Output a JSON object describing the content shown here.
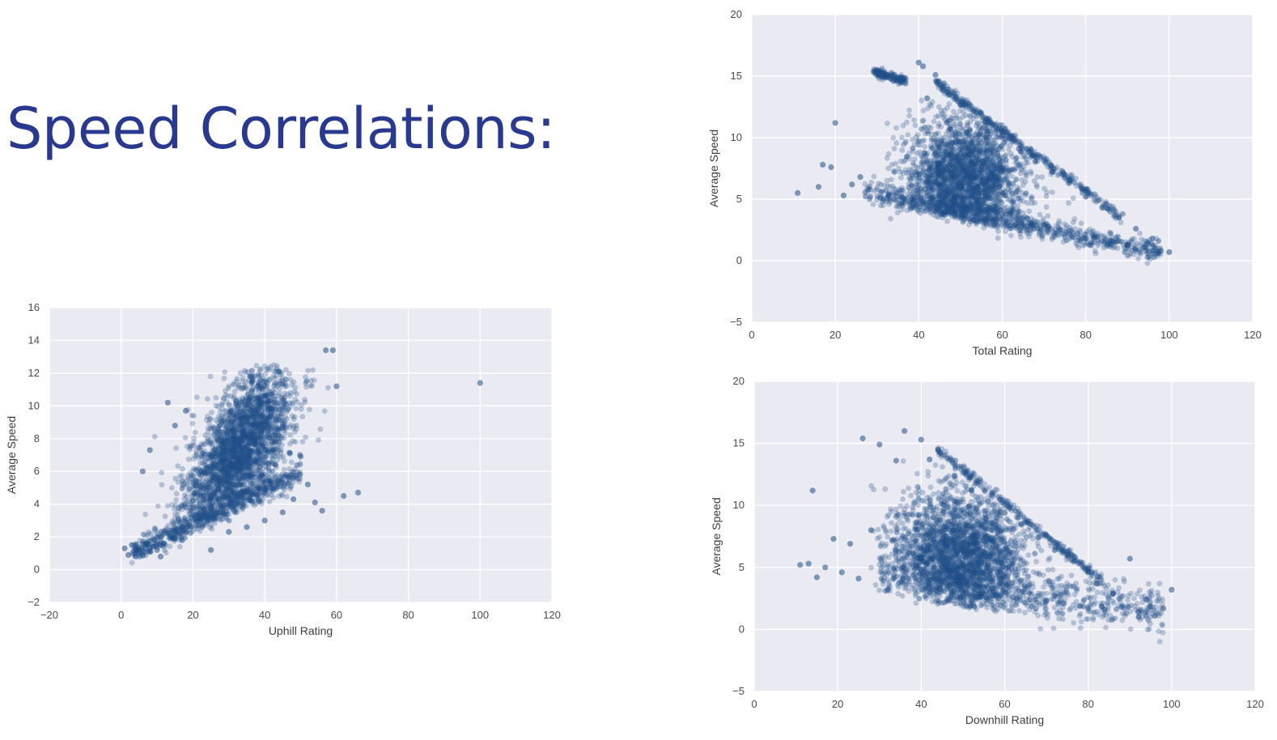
{
  "title": "Speed Correlations:",
  "colors": {
    "title": "#2a3990",
    "point": "#1f4e87",
    "background": "#eaeaf2",
    "grid": "#ffffff"
  },
  "chart_data": [
    {
      "type": "scatter",
      "xlabel": "Uphill Rating",
      "ylabel": "Average Speed",
      "xlim": [
        -20,
        120
      ],
      "ylim": [
        -2,
        16
      ],
      "xticks": [
        "−20",
        "0",
        "20",
        "40",
        "60",
        "80",
        "100",
        "120"
      ],
      "yticks": [
        "−2",
        "0",
        "2",
        "4",
        "6",
        "8",
        "10",
        "12",
        "14",
        "16"
      ],
      "grid": true,
      "points": [
        [
          1,
          1.3
        ],
        [
          2,
          0.9
        ],
        [
          3,
          1.5
        ],
        [
          4,
          0.8
        ],
        [
          5,
          1.2
        ],
        [
          6,
          0.9
        ],
        [
          7,
          1.6
        ],
        [
          8,
          1.1
        ],
        [
          9,
          1.4
        ],
        [
          10,
          1.2
        ],
        [
          11,
          2.0
        ],
        [
          12,
          1.6
        ],
        [
          14,
          2.4
        ],
        [
          15,
          1.9
        ],
        [
          16,
          3.1
        ],
        [
          17,
          2.6
        ],
        [
          18,
          3.8
        ],
        [
          19,
          2.9
        ],
        [
          20,
          4.2
        ],
        [
          21,
          3.4
        ],
        [
          22,
          5.1
        ],
        [
          23,
          3.7
        ],
        [
          24,
          6.2
        ],
        [
          25,
          4.4
        ],
        [
          26,
          7.3
        ],
        [
          27,
          4.9
        ],
        [
          28,
          8.1
        ],
        [
          29,
          5.6
        ],
        [
          30,
          9.2
        ],
        [
          31,
          6.1
        ],
        [
          32,
          10.3
        ],
        [
          33,
          6.8
        ],
        [
          34,
          11.1
        ],
        [
          35,
          7.4
        ],
        [
          36,
          11.8
        ],
        [
          37,
          7.9
        ],
        [
          38,
          11.2
        ],
        [
          39,
          8.4
        ],
        [
          40,
          10.6
        ],
        [
          41,
          7.2
        ],
        [
          42,
          9.8
        ],
        [
          43,
          6.4
        ],
        [
          44,
          12.1
        ],
        [
          45,
          8.9
        ],
        [
          46,
          5.8
        ],
        [
          47,
          7.1
        ],
        [
          48,
          4.3
        ],
        [
          50,
          6.9
        ],
        [
          52,
          5.2
        ],
        [
          54,
          4.1
        ],
        [
          56,
          3.6
        ],
        [
          57,
          13.4
        ],
        [
          59,
          13.4
        ],
        [
          60,
          11.2
        ],
        [
          62,
          4.5
        ],
        [
          66,
          4.7
        ],
        [
          100,
          11.4
        ],
        [
          6,
          6.0
        ],
        [
          8,
          7.3
        ],
        [
          13,
          10.2
        ],
        [
          15,
          8.8
        ],
        [
          18,
          9.7
        ],
        [
          11,
          0.8
        ],
        [
          25,
          1.2
        ],
        [
          30,
          2.3
        ],
        [
          35,
          2.6
        ],
        [
          40,
          3.0
        ],
        [
          45,
          3.5
        ]
      ],
      "points_note": "approximate sample of a dense point cloud"
    },
    {
      "type": "scatter",
      "xlabel": "Total Rating",
      "ylabel": "Average Speed",
      "xlim": [
        0,
        120
      ],
      "ylim": [
        -5,
        20
      ],
      "xticks": [
        "0",
        "20",
        "40",
        "60",
        "80",
        "100",
        "120"
      ],
      "yticks": [
        "−5",
        "0",
        "5",
        "10",
        "15",
        "20"
      ],
      "grid": true,
      "points": [
        [
          11,
          5.5
        ],
        [
          16,
          6.0
        ],
        [
          17,
          7.8
        ],
        [
          19,
          7.6
        ],
        [
          20,
          11.2
        ],
        [
          22,
          5.3
        ],
        [
          24,
          6.2
        ],
        [
          26,
          6.8
        ],
        [
          28,
          5.8
        ],
        [
          30,
          15.4
        ],
        [
          32,
          15.0
        ],
        [
          34,
          14.6
        ],
        [
          36,
          5.2
        ],
        [
          38,
          4.8
        ],
        [
          40,
          16.1
        ],
        [
          41,
          15.8
        ],
        [
          42,
          13.2
        ],
        [
          44,
          15.1
        ],
        [
          46,
          14.4
        ],
        [
          48,
          9.6
        ],
        [
          50,
          12.7
        ],
        [
          52,
          7.1
        ],
        [
          54,
          6.0
        ],
        [
          56,
          11.3
        ],
        [
          58,
          4.1
        ],
        [
          60,
          10.2
        ],
        [
          62,
          3.9
        ],
        [
          64,
          9.1
        ],
        [
          66,
          3.4
        ],
        [
          68,
          8.1
        ],
        [
          70,
          2.9
        ],
        [
          72,
          7.2
        ],
        [
          74,
          2.5
        ],
        [
          76,
          6.3
        ],
        [
          78,
          2.2
        ],
        [
          80,
          5.2
        ],
        [
          82,
          1.9
        ],
        [
          84,
          4.3
        ],
        [
          86,
          1.6
        ],
        [
          88,
          3.5
        ],
        [
          90,
          1.3
        ],
        [
          92,
          2.6
        ],
        [
          94,
          1.1
        ],
        [
          96,
          1.8
        ],
        [
          98,
          0.8
        ],
        [
          100,
          0.7
        ]
      ],
      "points_note": "approximate sample of a dense point cloud"
    },
    {
      "type": "scatter",
      "xlabel": "Downhill Rating",
      "ylabel": "Average Speed",
      "xlim": [
        0,
        120
      ],
      "ylim": [
        -5,
        20
      ],
      "xticks": [
        "0",
        "20",
        "40",
        "60",
        "80",
        "100",
        "120"
      ],
      "yticks": [
        "−5",
        "0",
        "5",
        "10",
        "15",
        "20"
      ],
      "grid": true,
      "points": [
        [
          11,
          5.2
        ],
        [
          13,
          5.3
        ],
        [
          14,
          11.2
        ],
        [
          15,
          4.2
        ],
        [
          17,
          5.0
        ],
        [
          19,
          7.3
        ],
        [
          21,
          4.6
        ],
        [
          23,
          6.9
        ],
        [
          25,
          4.1
        ],
        [
          26,
          15.4
        ],
        [
          28,
          8.0
        ],
        [
          30,
          14.9
        ],
        [
          32,
          3.2
        ],
        [
          34,
          13.6
        ],
        [
          36,
          16.0
        ],
        [
          38,
          4.4
        ],
        [
          40,
          15.3
        ],
        [
          42,
          13.7
        ],
        [
          44,
          14.5
        ],
        [
          46,
          7.5
        ],
        [
          48,
          12.4
        ],
        [
          50,
          5.9
        ],
        [
          52,
          11.2
        ],
        [
          54,
          3.4
        ],
        [
          56,
          10.3
        ],
        [
          58,
          2.8
        ],
        [
          60,
          9.4
        ],
        [
          62,
          2.6
        ],
        [
          64,
          8.5
        ],
        [
          66,
          2.4
        ],
        [
          68,
          7.4
        ],
        [
          70,
          2.3
        ],
        [
          72,
          6.4
        ],
        [
          74,
          2.1
        ],
        [
          76,
          5.6
        ],
        [
          78,
          1.9
        ],
        [
          80,
          4.6
        ],
        [
          82,
          3.7
        ],
        [
          84,
          1.6
        ],
        [
          86,
          2.9
        ],
        [
          88,
          1.8
        ],
        [
          90,
          5.7
        ],
        [
          92,
          1.4
        ],
        [
          94,
          2.4
        ],
        [
          96,
          1.1
        ],
        [
          98,
          1.7
        ],
        [
          100,
          3.2
        ]
      ],
      "points_note": "approximate sample of a dense point cloud"
    }
  ]
}
